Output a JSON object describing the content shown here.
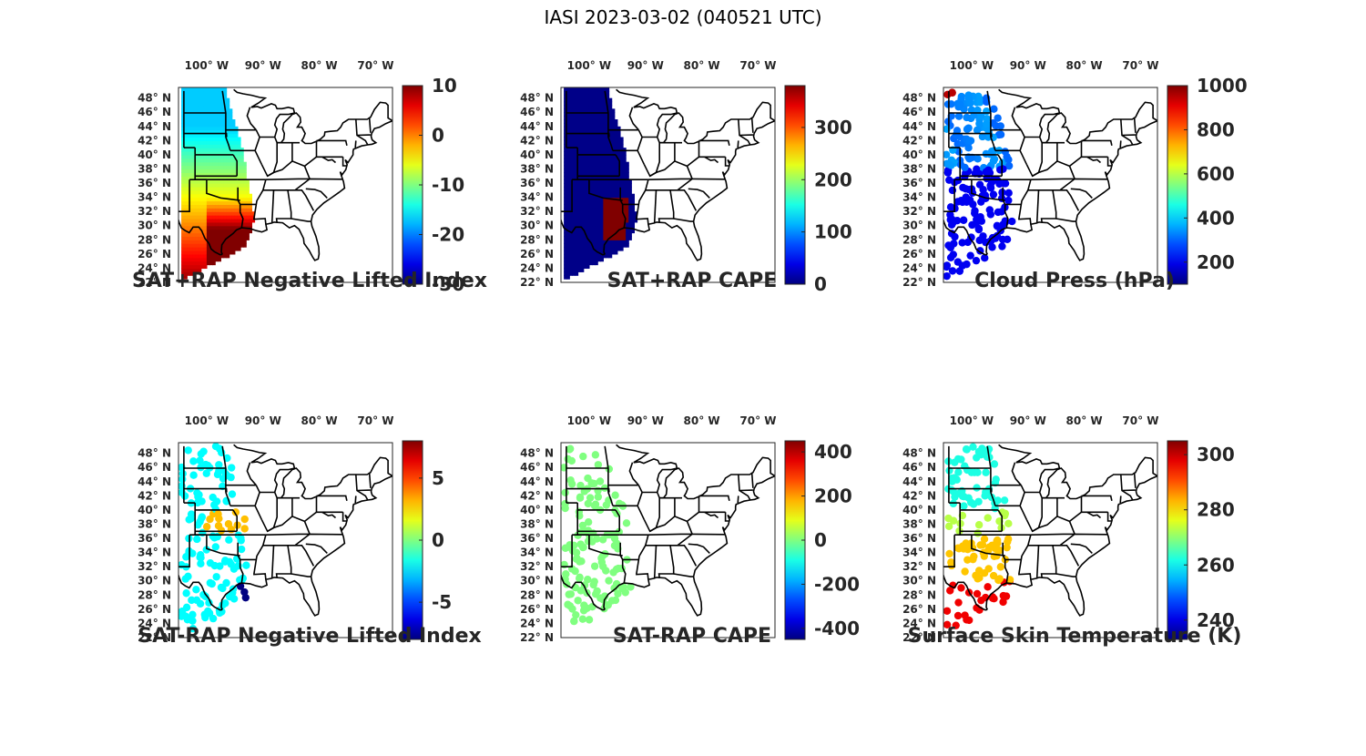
{
  "title": "IASI 2023-03-02 (040521 UTC)",
  "map": {
    "lon_ticks": [
      "100° W",
      "90° W",
      "80° W",
      "70° W"
    ],
    "lat_ticks": [
      "48° N",
      "46° N",
      "44° N",
      "42° N",
      "40° N",
      "38° N",
      "36° N",
      "34° N",
      "32° N",
      "30° N",
      "28° N",
      "26° N",
      "24° N",
      "22° N"
    ],
    "lon_range": [
      -105,
      -67
    ],
    "lat_range": [
      22,
      49.5
    ]
  },
  "colormap": "jet",
  "chart_data": [
    {
      "type": "heatmap",
      "title": "SAT+RAP Negative Lifted Index",
      "colorbar": {
        "ticks": [
          10,
          0,
          -10,
          -20,
          -30
        ],
        "range": [
          -30,
          10
        ]
      },
      "regions": [
        {
          "area": "northern plains swath",
          "approx_value": -15
        },
        {
          "area": "central plains",
          "approx_value": -5
        },
        {
          "area": "south Texas / Gulf coast",
          "approx_value": 5
        }
      ]
    },
    {
      "type": "heatmap",
      "title": "SAT+RAP CAPE",
      "colorbar": {
        "ticks": [
          300,
          200,
          100,
          0
        ],
        "range": [
          0,
          380
        ]
      },
      "regions": [
        {
          "area": "swath background",
          "approx_value": 0
        },
        {
          "area": "east Texas / Louisiana",
          "approx_value": 380
        }
      ]
    },
    {
      "type": "scatter",
      "title": "Cloud Press (hPa)",
      "colorbar": {
        "ticks": [
          1000,
          800,
          600,
          400,
          200
        ],
        "range": [
          100,
          1000
        ]
      },
      "regions": [
        {
          "area": "northern plains",
          "approx_value": 350
        },
        {
          "area": "southern plains / Gulf",
          "approx_value": 200
        },
        {
          "area": "northwest corner",
          "approx_value": 950
        }
      ]
    },
    {
      "type": "scatter",
      "title": "SAT-RAP Negative Lifted Index",
      "colorbar": {
        "ticks": [
          5,
          0,
          -5
        ],
        "range": [
          -8,
          8
        ]
      },
      "regions": [
        {
          "area": "plains scattered",
          "approx_value": -2
        },
        {
          "area": "Kansas cluster",
          "approx_value": 3
        },
        {
          "area": "Louisiana cluster",
          "approx_value": -8
        }
      ]
    },
    {
      "type": "scatter",
      "title": "SAT-RAP CAPE",
      "colorbar": {
        "ticks": [
          400,
          200,
          0,
          -200,
          -400
        ],
        "range": [
          -450,
          450
        ]
      },
      "regions": [
        {
          "area": "all points",
          "approx_value": 0
        }
      ]
    },
    {
      "type": "scatter",
      "title": "Surface Skin Temperature (K)",
      "colorbar": {
        "ticks": [
          300,
          280,
          260,
          240
        ],
        "range": [
          233,
          305
        ]
      },
      "regions": [
        {
          "area": "northern plains",
          "approx_value": 262
        },
        {
          "area": "central plains",
          "approx_value": 278
        },
        {
          "area": "Texas / Gulf coast",
          "approx_value": 297
        }
      ]
    }
  ]
}
